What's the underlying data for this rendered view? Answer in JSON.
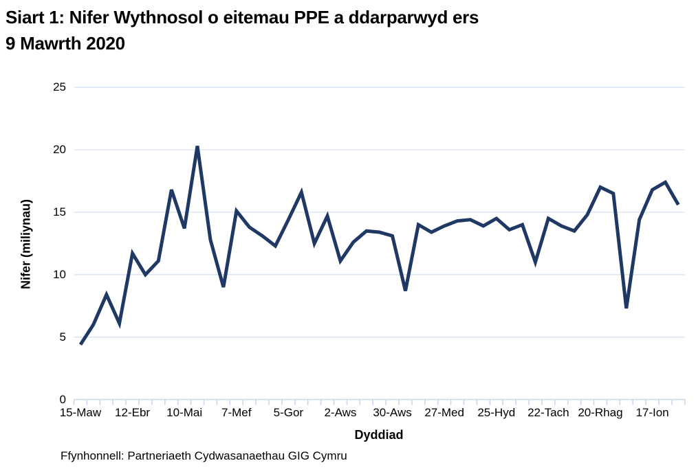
{
  "title": {
    "line1": "Siart 1: Nifer Wythnosol o eitemau PPE a ddarparwyd ers",
    "line2": "9 Mawrth 2020"
  },
  "source": "Ffynhonnell: Partneriaeth Cydwasanaethau GIG Cymru",
  "chart_data": {
    "type": "line",
    "title": "Siart 1: Nifer Wythnosol o eitemau PPE a ddarparwyd ers 9 Mawrth 2020",
    "xlabel": "Dyddiad",
    "ylabel": "Nifer (miliynau)",
    "ylim": [
      0,
      25
    ],
    "y_ticks": [
      0,
      5,
      10,
      15,
      20,
      25
    ],
    "grid": "horizontal",
    "legend": "none",
    "line_color": "#1f3864",
    "gridline_color": "#d6e2f3",
    "axis_color": "#c9d7ef",
    "weeks": 47,
    "x_labels": [
      "15-Maw",
      "12-Ebr",
      "10-Mai",
      "7-Mef",
      "5-Gor",
      "2-Aws",
      "30-Aws",
      "27-Med",
      "25-Hyd",
      "22-Tach",
      "20-Rhag",
      "17-Ion"
    ],
    "label_every_n_weeks": 4,
    "values": [
      4.4,
      6.0,
      8.4,
      6.1,
      11.7,
      10.0,
      11.1,
      16.8,
      13.7,
      20.3,
      12.8,
      9.0,
      15.1,
      13.8,
      13.1,
      12.3,
      14.4,
      16.6,
      12.5,
      14.7,
      11.1,
      12.6,
      13.5,
      13.4,
      13.1,
      8.7,
      14.0,
      13.4,
      13.9,
      14.3,
      14.4,
      13.9,
      14.5,
      13.6,
      14.0,
      11.0,
      14.5,
      13.9,
      13.5,
      14.8,
      17.0,
      16.5,
      7.3,
      14.4,
      16.8,
      17.4,
      15.6
    ]
  }
}
